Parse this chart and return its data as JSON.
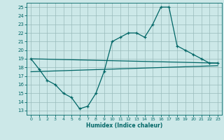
{
  "title": "",
  "xlabel": "Humidex (Indice chaleur)",
  "xlim": [
    -0.5,
    23.5
  ],
  "ylim": [
    12.5,
    25.5
  ],
  "yticks": [
    13,
    14,
    15,
    16,
    17,
    18,
    19,
    20,
    21,
    22,
    23,
    24,
    25
  ],
  "xticks": [
    0,
    1,
    2,
    3,
    4,
    5,
    6,
    7,
    8,
    9,
    10,
    11,
    12,
    13,
    14,
    15,
    16,
    17,
    18,
    19,
    20,
    21,
    22,
    23
  ],
  "bg_color": "#cce8e8",
  "grid_color": "#99bbbb",
  "line_color": "#006666",
  "line_width": 0.9,
  "marker_size": 3.5,
  "line1_x": [
    0,
    1,
    2,
    3,
    4,
    5,
    6,
    7,
    8,
    9,
    10,
    11,
    12,
    13,
    14,
    15,
    16,
    17,
    18,
    19,
    20,
    21,
    22,
    23
  ],
  "line1_y": [
    19.0,
    17.8,
    16.5,
    16.0,
    15.0,
    14.5,
    13.2,
    13.5,
    15.0,
    17.5,
    21.0,
    21.5,
    22.0,
    22.0,
    21.5,
    23.0,
    25.0,
    25.0,
    20.5,
    20.0,
    19.5,
    19.0,
    18.5,
    18.5
  ],
  "line2_x": [
    0,
    23
  ],
  "line2_y": [
    19.0,
    18.5
  ],
  "line3_x": [
    0,
    23
  ],
  "line3_y": [
    17.5,
    18.2
  ]
}
